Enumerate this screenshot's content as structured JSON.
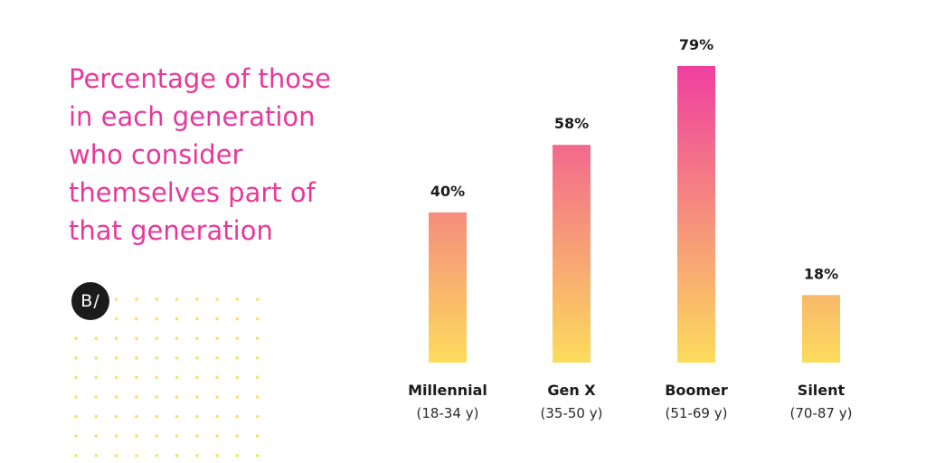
{
  "title_lines": [
    "Percentage of those",
    "in each generation",
    "who consider",
    "themselves part of",
    "that generation"
  ],
  "logo_text": "B/",
  "colors": {
    "title": "#e6399b",
    "bar_top": "#ef3f9f",
    "bar_bottom": "#fcdc5c",
    "dots": "#f7e36a",
    "text": "#1b1b1b"
  },
  "chart_data": {
    "type": "bar",
    "title": "Percentage of those in each generation who consider themselves part of that generation",
    "categories": [
      "Millennial",
      "Gen X",
      "Boomer",
      "Silent"
    ],
    "subcategories": [
      "(18-34 y)",
      "(35-50 y)",
      "(51-69 y)",
      "(70-87 y)"
    ],
    "values": [
      40,
      58,
      79,
      18
    ],
    "value_labels": [
      "40%",
      "58%",
      "79%",
      "18%"
    ],
    "unit": "%",
    "ylim": [
      0,
      100
    ],
    "grid": false,
    "legend": false
  }
}
